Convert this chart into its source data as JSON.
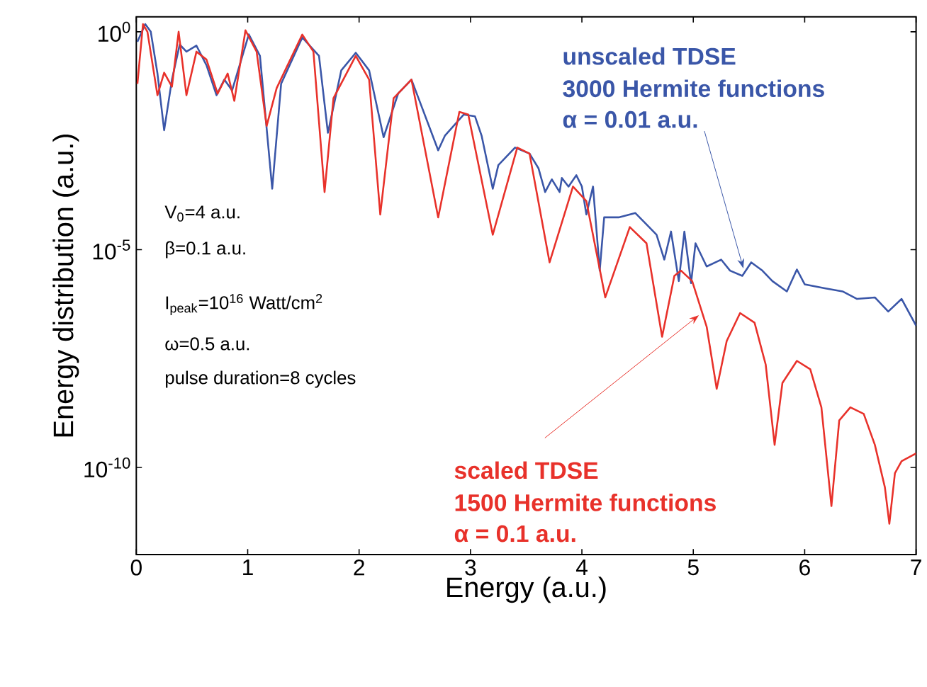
{
  "chart_data": {
    "type": "line",
    "xlabel": "Energy (a.u.)",
    "ylabel": "Energy distribution (a.u.)",
    "log": "y",
    "xlim": [
      0,
      7
    ],
    "xticks": [
      0,
      1,
      2,
      3,
      4,
      5,
      6,
      7
    ],
    "ylim": [
      1e-12,
      2.2
    ],
    "yticks": [
      {
        "value": 1,
        "label": "10$^{0}$"
      },
      {
        "value": 1e-05,
        "label": "10$^{-5}$"
      },
      {
        "value": 1e-10,
        "label": "10$^{-10}$"
      }
    ],
    "grid": false,
    "marker": "none",
    "line_style": "solid",
    "series": [
      {
        "color": "#3a56a8",
        "x": [
          0.01,
          0.08,
          0.13,
          0.19,
          0.25,
          0.32,
          0.39,
          0.45,
          0.54,
          0.63,
          0.72,
          0.79,
          0.86,
          1.01,
          1.11,
          1.22,
          1.3,
          1.49,
          1.64,
          1.72,
          1.84,
          1.97,
          2.09,
          2.22,
          2.35,
          2.47,
          2.71,
          2.77,
          2.94,
          3.04,
          3.1,
          3.2,
          3.25,
          3.4,
          3.53,
          3.61,
          3.67,
          3.73,
          3.8,
          3.82,
          3.88,
          3.95,
          4.0,
          4.04,
          4.1,
          4.16,
          4.2,
          4.33,
          4.48,
          4.58,
          4.67,
          4.74,
          4.8,
          4.87,
          4.92,
          4.98,
          5.02,
          5.12,
          5.25,
          5.33,
          5.44,
          5.52,
          5.62,
          5.71,
          5.84,
          5.93,
          6.0,
          6.18,
          6.34,
          6.47,
          6.63,
          6.75,
          6.87,
          7.0
        ],
        "values": [
          0.59,
          1.5,
          1.0,
          0.11,
          0.0055,
          0.08,
          0.51,
          0.35,
          0.48,
          0.17,
          0.035,
          0.08,
          0.045,
          0.87,
          0.28,
          0.00025,
          0.064,
          0.74,
          0.28,
          0.0048,
          0.13,
          0.33,
          0.13,
          0.0038,
          0.038,
          0.08,
          0.0019,
          0.0041,
          0.0126,
          0.0115,
          0.0041,
          0.00025,
          0.00087,
          0.0022,
          0.0016,
          0.00074,
          0.00021,
          0.00041,
          0.00021,
          0.00044,
          0.00028,
          0.00051,
          0.00028,
          6.4e-05,
          0.00028,
          3.3e-06,
          5.5e-05,
          5.5e-05,
          6.9e-05,
          3.8e-05,
          2.2e-05,
          5.9e-06,
          2.6e-05,
          1.9e-06,
          2.6e-05,
          1.7e-06,
          1.4e-05,
          4.1e-06,
          5.9e-06,
          3.3e-06,
          2.5e-06,
          5.1e-06,
          3.3e-06,
          1.9e-06,
          1.1e-06,
          3.5e-06,
          1.6e-06,
          1.3e-06,
          1.1e-06,
          7.4e-07,
          8e-07,
          3.8e-07,
          7.4e-07,
          1.8e-07
        ]
      },
      {
        "color": "#e8312a",
        "x": [
          0.01,
          0.06,
          0.1,
          0.19,
          0.25,
          0.32,
          0.38,
          0.45,
          0.54,
          0.63,
          0.73,
          0.82,
          0.88,
          0.98,
          1.08,
          1.17,
          1.26,
          1.49,
          1.59,
          1.69,
          1.77,
          1.97,
          2.09,
          2.19,
          2.31,
          2.47,
          2.71,
          2.9,
          2.98,
          3.2,
          3.42,
          3.53,
          3.71,
          3.92,
          4.04,
          4.21,
          4.43,
          4.58,
          4.72,
          4.83,
          4.89,
          4.99,
          5.12,
          5.21,
          5.3,
          5.42,
          5.55,
          5.65,
          5.73,
          5.8,
          5.93,
          6.05,
          6.15,
          6.24,
          6.31,
          6.41,
          6.53,
          6.63,
          6.72,
          6.76,
          6.81,
          6.87,
          6.95,
          7.0
        ],
        "values": [
          0.064,
          1.5,
          1.0,
          0.035,
          0.115,
          0.055,
          1.0,
          0.035,
          0.35,
          0.23,
          0.038,
          0.11,
          0.026,
          1.08,
          0.35,
          0.0069,
          0.051,
          0.86,
          0.35,
          0.00021,
          0.03,
          0.28,
          0.08,
          6.4e-05,
          0.03,
          0.08,
          5.5e-05,
          0.0145,
          0.0126,
          2.2e-05,
          0.0022,
          0.0016,
          5.1e-06,
          0.00028,
          0.00013,
          8e-07,
          3.3e-05,
          1.4e-05,
          1e-07,
          2.5e-06,
          3.3e-06,
          1.9e-06,
          1.7e-07,
          6.4e-09,
          8e-08,
          3.5e-07,
          2.1e-07,
          2.3e-08,
          3.3e-10,
          8.7e-09,
          2.8e-08,
          1.8e-08,
          2.4e-09,
          1.3e-11,
          1.2e-09,
          2.4e-09,
          1.7e-09,
          3.3e-10,
          3.5e-11,
          5.1e-12,
          7.4e-11,
          1.4e-10,
          1.8e-10,
          2.1e-10
        ]
      }
    ],
    "annotations": [
      "V$_{0}$=4 a.u.",
      "β=0.1 a.u.",
      "I$_{peak}$=10$^{16}$ Watt/cm$^{2}$",
      "ω=0.5 a.u.",
      "pulse duration=8 cycles",
      "unscaled TDSE",
      "3000 Hermite functions",
      {
        "text": "α = 0.01 a.u.",
        "x": 5.46,
        "y": 3e-06
      },
      {
        "text": "scaled TDSE",
        "x": 5.08,
        "y": 3.6e-07
      },
      "1500 Hermite functions",
      "α = 0.1 a.u."
    ]
  }
}
